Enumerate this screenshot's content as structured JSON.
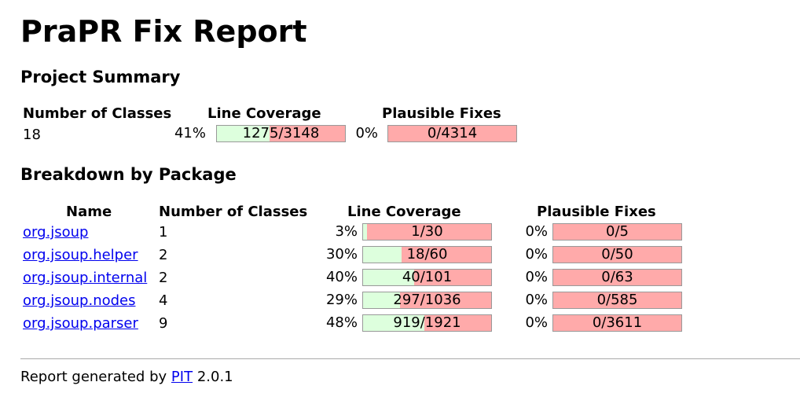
{
  "title": "PraPR Fix Report",
  "summary": {
    "heading": "Project Summary",
    "headers": {
      "classes": "Number of Classes",
      "coverage": "Line Coverage",
      "fixes": "Plausible Fixes"
    },
    "classes": "18",
    "coverage": {
      "percent": "41%",
      "text": "1275/3148",
      "fraction": 0.41
    },
    "fixes": {
      "percent": "0%",
      "text": "0/4314",
      "fraction": 0
    }
  },
  "breakdown": {
    "heading": "Breakdown by Package",
    "headers": {
      "name": "Name",
      "classes": "Number of Classes",
      "coverage": "Line Coverage",
      "fixes": "Plausible Fixes"
    },
    "rows": [
      {
        "name": "org.jsoup",
        "classes": "1",
        "coverage": {
          "percent": "3%",
          "text": "1/30",
          "fraction": 0.03
        },
        "fixes": {
          "percent": "0%",
          "text": "0/5",
          "fraction": 0
        }
      },
      {
        "name": "org.jsoup.helper",
        "classes": "2",
        "coverage": {
          "percent": "30%",
          "text": "18/60",
          "fraction": 0.3
        },
        "fixes": {
          "percent": "0%",
          "text": "0/50",
          "fraction": 0
        }
      },
      {
        "name": "org.jsoup.internal",
        "classes": "2",
        "coverage": {
          "percent": "40%",
          "text": "40/101",
          "fraction": 0.4
        },
        "fixes": {
          "percent": "0%",
          "text": "0/63",
          "fraction": 0
        }
      },
      {
        "name": "org.jsoup.nodes",
        "classes": "4",
        "coverage": {
          "percent": "29%",
          "text": "297/1036",
          "fraction": 0.29
        },
        "fixes": {
          "percent": "0%",
          "text": "0/585",
          "fraction": 0
        }
      },
      {
        "name": "org.jsoup.parser",
        "classes": "9",
        "coverage": {
          "percent": "48%",
          "text": "919/1921",
          "fraction": 0.48
        },
        "fixes": {
          "percent": "0%",
          "text": "0/3611",
          "fraction": 0
        }
      }
    ]
  },
  "footer": {
    "prefix": "Report generated by",
    "link": "PIT",
    "version": "2.0.1"
  },
  "colors": {
    "covered": "#ddffdd",
    "uncovered": "#ffaaaa"
  }
}
